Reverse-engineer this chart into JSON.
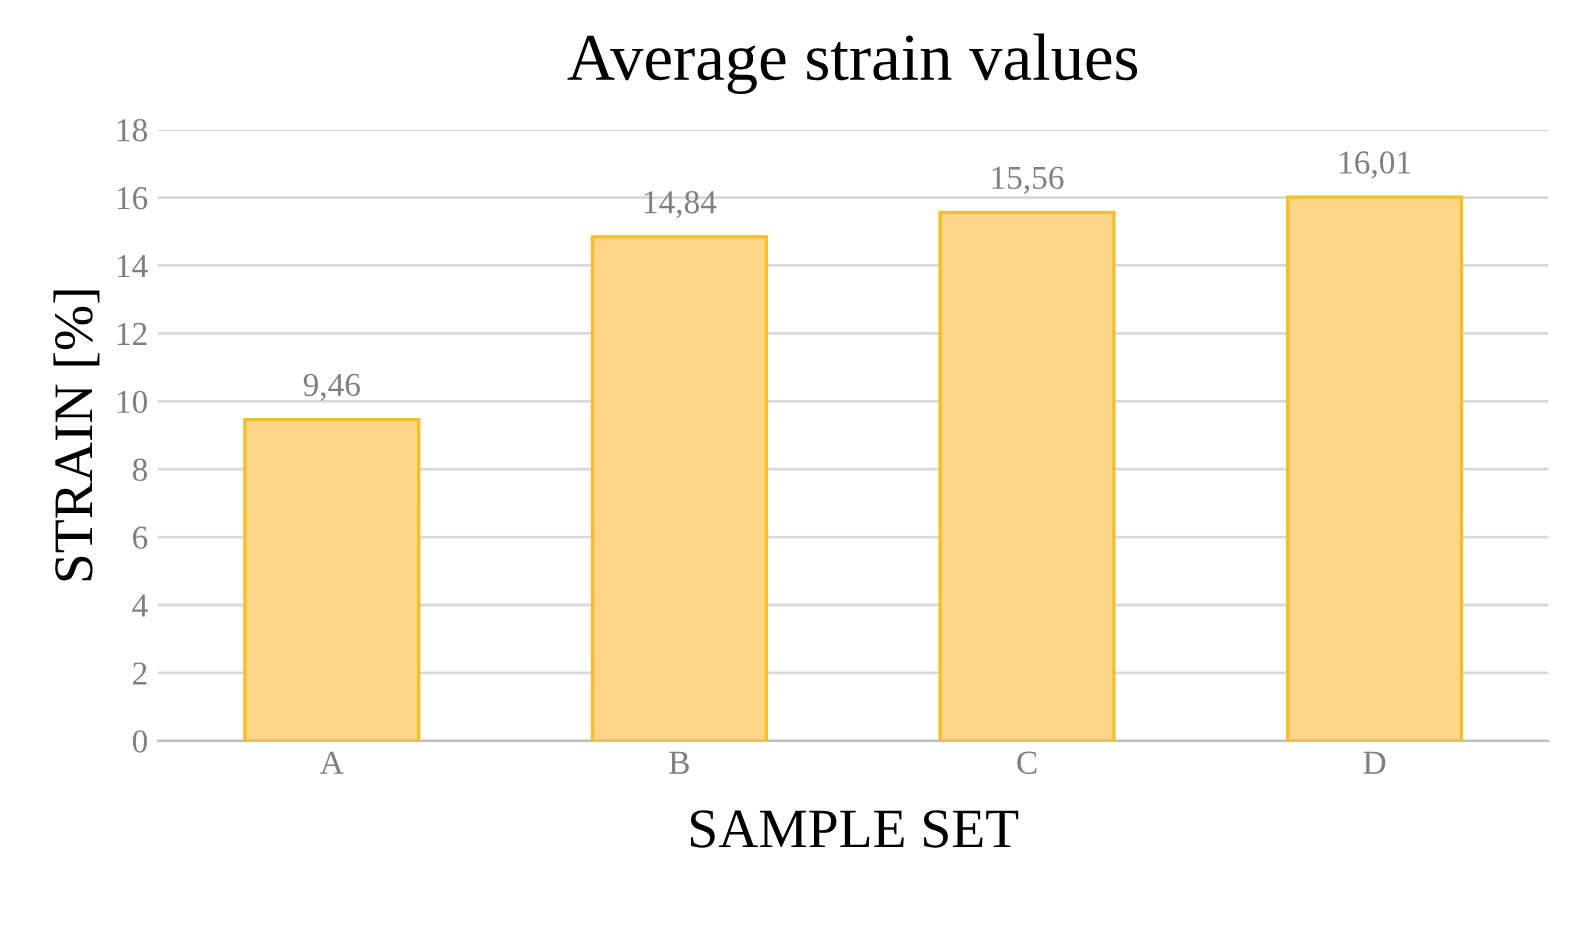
{
  "chart_data": {
    "type": "bar",
    "title": "Average strain values",
    "xlabel": "SAMPLE SET",
    "ylabel": "STRAIN [%]",
    "categories": [
      "A",
      "B",
      "C",
      "D"
    ],
    "values": [
      9.46,
      14.84,
      15.56,
      16.01
    ],
    "value_labels": [
      "9,46",
      "14,84",
      "15,56",
      "16,01"
    ],
    "color": "#fdd68a",
    "ylim": [
      0,
      18
    ],
    "yticks": [
      0,
      2,
      4,
      6,
      8,
      10,
      12,
      14,
      16,
      18
    ],
    "grid": "y"
  }
}
